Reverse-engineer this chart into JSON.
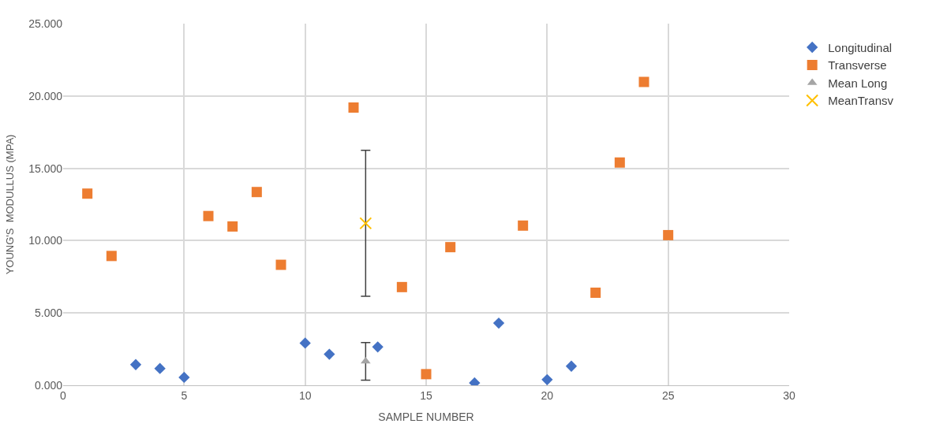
{
  "chart_data": {
    "type": "scatter",
    "xlabel": "SAMPLE NUMBER",
    "ylabel": "YOUNG'S  MODULLUS (MPA)",
    "xlim": [
      0,
      30
    ],
    "xticks": [
      0,
      5,
      10,
      15,
      20,
      25,
      30
    ],
    "ylim": [
      0,
      25
    ],
    "yticks": [
      {
        "value": 0,
        "label": "0.000"
      },
      {
        "value": 5,
        "label": "5.000"
      },
      {
        "value": 10,
        "label": "10.000"
      },
      {
        "value": 15,
        "label": "15.000"
      },
      {
        "value": 20,
        "label": "20.000"
      },
      {
        "value": 25,
        "label": "25.000"
      }
    ],
    "grid": true,
    "legend": "right",
    "series": [
      {
        "name": "Longitudinal",
        "color": "#4472c4",
        "marker": "diamond",
        "x": [
          3,
          4,
          5,
          10,
          11,
          13,
          17,
          18,
          20,
          21
        ],
        "values": [
          1.43,
          1.16,
          0.55,
          2.92,
          2.15,
          2.65,
          0.17,
          4.3,
          0.39,
          1.32
        ]
      },
      {
        "name": "Transverse",
        "color": "#ed7d31",
        "marker": "square",
        "x": [
          1,
          2,
          6,
          7,
          8,
          9,
          12,
          14,
          15,
          16,
          19,
          22,
          23,
          24,
          25
        ],
        "values": [
          13.25,
          8.94,
          11.7,
          10.98,
          13.36,
          8.33,
          19.2,
          6.79,
          0.77,
          9.55,
          11.04,
          6.4,
          15.4,
          20.97,
          10.38
        ]
      },
      {
        "name": "Mean Long",
        "color": "#a5a5a5",
        "marker": "triangle",
        "x": [
          12.5
        ],
        "values": [
          1.66
        ],
        "errors": [
          1.3
        ]
      },
      {
        "name": "MeanTransv",
        "color": "#ffc000",
        "marker": "cross",
        "x": [
          12.5
        ],
        "values": [
          11.2
        ],
        "errors": [
          5.05
        ]
      }
    ]
  }
}
